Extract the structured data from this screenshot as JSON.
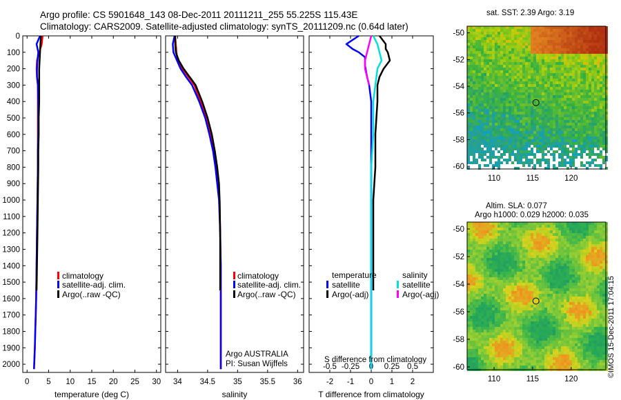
{
  "header": {
    "line1": "Argo profile: CS 5901648_143 08-Dec-2011 20111211_255 55.225S 115.43E",
    "line2": "Climatology: CARS2009. Satellite-adjusted climatology: synTS_20111209.nc (0.64d later)"
  },
  "colors": {
    "climatology": "#ff0000",
    "satellite": "#0000ff",
    "argo": "#000000",
    "sal_satellite": "#00e0e0",
    "sal_argo": "#ff00ff"
  },
  "chart_data": [
    {
      "type": "line",
      "id": "temperature",
      "xlabel": "temperature (deg C)",
      "xlim": [
        -1,
        31
      ],
      "ylim": [
        2050,
        0
      ],
      "yticks": [
        0,
        100,
        200,
        300,
        400,
        500,
        600,
        700,
        800,
        900,
        1000,
        1100,
        1200,
        1300,
        1400,
        1500,
        1600,
        1700,
        1800,
        1900,
        2000
      ],
      "xticks": [
        0,
        5,
        10,
        15,
        20,
        25,
        30
      ],
      "legend": [
        "climatology",
        "satellite-adj. clim.",
        "Argo(..raw -QC)"
      ],
      "series": [
        {
          "name": "climatology",
          "color": "#ff0000",
          "x": [
            3.6,
            3.4,
            2.8,
            2.3,
            2.2,
            2.3,
            2.5,
            2.5,
            2.5,
            2.5,
            2.5,
            2.5,
            2.4,
            2.3,
            2.2,
            2.1,
            2.0,
            1.9,
            1.8,
            1.6
          ],
          "y": [
            0,
            50,
            100,
            150,
            200,
            250,
            300,
            400,
            500,
            600,
            700,
            800,
            1000,
            1200,
            1400,
            1600,
            1700,
            1800,
            1900,
            2030
          ]
        },
        {
          "name": "satellite-adj. clim.",
          "color": "#0000ff",
          "x": [
            3.0,
            2.2,
            2.6,
            2.4,
            2.3,
            2.3,
            2.5,
            2.6,
            2.6,
            2.6,
            2.5,
            2.5,
            2.4,
            2.3,
            2.2,
            2.1,
            2.0,
            1.9,
            1.8,
            1.6
          ],
          "y": [
            0,
            50,
            100,
            150,
            200,
            250,
            300,
            400,
            500,
            600,
            700,
            800,
            1000,
            1200,
            1400,
            1600,
            1700,
            1800,
            1900,
            2030
          ]
        },
        {
          "name": "Argo(..raw -QC)",
          "color": "#000000",
          "x": [
            3.2,
            3.1,
            3.0,
            2.9,
            2.8,
            2.8,
            2.8,
            2.8,
            2.7,
            2.7,
            2.6,
            2.6,
            2.5,
            2.4,
            2.3,
            2.2
          ],
          "y": [
            0,
            50,
            100,
            150,
            200,
            250,
            300,
            400,
            500,
            600,
            700,
            800,
            1000,
            1200,
            1400,
            1550
          ]
        }
      ]
    },
    {
      "type": "line",
      "id": "salinity",
      "xlabel": "salinity",
      "xlim": [
        33.8,
        36.1
      ],
      "ylim": [
        2050,
        0
      ],
      "xticks": [
        34,
        34.5,
        35,
        35.5,
        36
      ],
      "legend": [
        "climatology",
        "satellite-adj. clim.",
        "Argo(..raw -QC)"
      ],
      "annotation": [
        "Argo AUSTRALIA",
        "PI: Susan Wijffels"
      ],
      "series": [
        {
          "name": "climatology",
          "color": "#ff0000",
          "x": [
            33.96,
            33.97,
            33.98,
            34.0,
            34.08,
            34.18,
            34.28,
            34.38,
            34.48,
            34.55,
            34.6,
            34.64,
            34.67,
            34.7,
            34.71,
            34.72,
            34.72,
            34.72
          ],
          "y": [
            0,
            50,
            100,
            150,
            200,
            250,
            300,
            400,
            500,
            600,
            700,
            800,
            900,
            1000,
            1200,
            1400,
            1600,
            2030
          ]
        },
        {
          "name": "satellite-adj. clim.",
          "color": "#0000ff",
          "x": [
            33.95,
            33.92,
            33.93,
            33.99,
            34.05,
            34.14,
            34.24,
            34.36,
            34.46,
            34.53,
            34.59,
            34.63,
            34.66,
            34.69,
            34.71,
            34.72,
            34.72,
            34.72
          ],
          "y": [
            0,
            50,
            100,
            150,
            200,
            250,
            300,
            400,
            500,
            600,
            700,
            800,
            900,
            1000,
            1200,
            1400,
            1600,
            2030
          ]
        },
        {
          "name": "Argo(..raw -QC)",
          "color": "#000000",
          "x": [
            33.96,
            33.96,
            33.97,
            34.02,
            34.1,
            34.2,
            34.3,
            34.41,
            34.5,
            34.57,
            34.62,
            34.66,
            34.69,
            34.7,
            34.71,
            34.71,
            34.71
          ],
          "y": [
            0,
            50,
            100,
            150,
            200,
            250,
            300,
            400,
            500,
            600,
            700,
            800,
            900,
            1000,
            1200,
            1400,
            1550
          ]
        }
      ]
    },
    {
      "type": "line",
      "id": "difference",
      "xlabel": "T difference from climatology",
      "xlabel_top": "S difference from climatology",
      "xlim": [
        -3,
        3
      ],
      "xticks": [
        -2,
        -1,
        0,
        1,
        2
      ],
      "top_ticks": [
        "-0.5",
        "-0.25",
        "0",
        "0.25",
        "0.5"
      ],
      "ylim": [
        2050,
        0
      ],
      "legend_groups": [
        {
          "title": "temperature",
          "items": [
            "satellite",
            "Argo(-adj)"
          ]
        },
        {
          "title": "salinity",
          "items": [
            "satellite",
            "Argo(-adj)"
          ]
        }
      ],
      "series": [
        {
          "name": "temperature satellite",
          "color": "#0000ff",
          "x": [
            -0.6,
            -1.2,
            -0.9,
            -0.6,
            -0.3,
            -0.3,
            -0.2,
            -0.1,
            0.0,
            0.0,
            0.0,
            0.0,
            0.0,
            0.0,
            0.0
          ],
          "y": [
            0,
            50,
            80,
            100,
            130,
            180,
            250,
            300,
            400,
            600,
            800,
            1000,
            1300,
            1600,
            2030
          ]
        },
        {
          "name": "temperature Argo(-adj)",
          "color": "#000000",
          "x": [
            0.4,
            0.7,
            0.7,
            0.8,
            0.9,
            0.6,
            0.4,
            0.3,
            0.3,
            0.2,
            0.2,
            0.1,
            0.1,
            0.1
          ],
          "y": [
            0,
            50,
            80,
            100,
            150,
            200,
            250,
            300,
            400,
            600,
            800,
            1000,
            1300,
            1550
          ]
        },
        {
          "name": "salinity satellite",
          "color": "#00e0e0",
          "x": [
            0.1,
            0.3,
            0.4,
            0.5,
            0.3,
            0.2,
            0.1,
            0.1,
            0.0,
            0.0,
            0.0,
            0.0,
            0.0
          ],
          "y": [
            0,
            50,
            100,
            150,
            200,
            300,
            400,
            600,
            800,
            1000,
            1300,
            1600,
            2030
          ]
        },
        {
          "name": "salinity Argo(-adj)",
          "color": "#ff00ff",
          "x": [
            0.0,
            -0.1,
            -0.2,
            -0.3,
            -0.3,
            -0.2,
            -0.1
          ],
          "y": [
            0,
            50,
            100,
            150,
            200,
            250,
            300
          ]
        }
      ]
    },
    {
      "type": "heatmap",
      "id": "sst-map",
      "title": "sat. SST: 2.39 Argo: 3.19",
      "xticks": [
        110,
        115,
        120
      ],
      "yticks": [
        -50,
        -52,
        -54,
        -56,
        -58,
        -60
      ],
      "xlim": [
        106.5,
        124.5
      ],
      "ylim": [
        -60.2,
        -49.5
      ],
      "marker": {
        "lon": 115.43,
        "lat": -55.225
      }
    },
    {
      "type": "heatmap",
      "id": "sla-map",
      "title_lines": [
        "Altim. SLA: 0.077",
        "Argo h1000: 0.029 h2000: 0.035"
      ],
      "xticks": [
        110,
        115,
        120
      ],
      "yticks": [
        -50,
        -52,
        -54,
        -56,
        -58,
        -60
      ],
      "xlim": [
        106.5,
        124.5
      ],
      "ylim": [
        -60.2,
        -49.5
      ],
      "marker": {
        "lon": 115.43,
        "lat": -55.225
      }
    }
  ],
  "legend1": {
    "climatology": "climatology",
    "satellite": "satellite-adj. clim.",
    "argo": "Argo(..raw -QC)"
  },
  "legend2": {
    "climatology": "climatology",
    "satellite": "satellite-adj. clim.",
    "argo": "Argo(..raw -QC)"
  },
  "annotation": {
    "line1": "Argo AUSTRALIA",
    "line2": "PI: Susan Wijffels"
  },
  "legend3": {
    "temp_title": "temperature",
    "sal_title": "salinity",
    "temp_sat": "satellite",
    "temp_argo": "Argo(-adj)",
    "sal_sat": "satellite",
    "sal_argo": "Argo(-adj)"
  },
  "diff_top_label": "S difference from climatology",
  "sst_title": "sat. SST: 2.39 Argo: 3.19",
  "sla_title1": "Altim. SLA: 0.077",
  "sla_title2": "Argo h1000: 0.029 h2000: 0.035",
  "watermark": "©IMOS 15-Dec-2011 17:04:15"
}
